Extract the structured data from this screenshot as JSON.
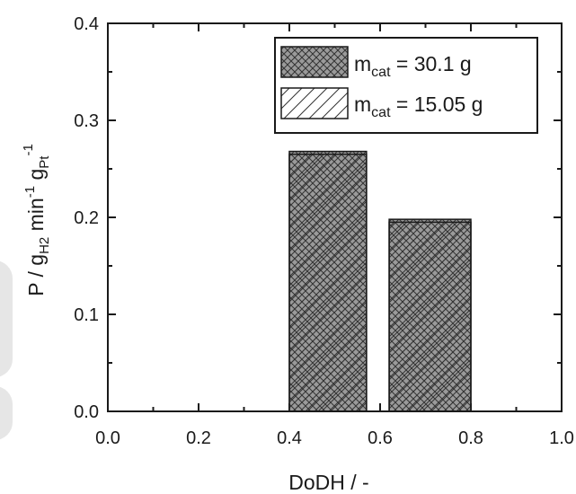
{
  "chart_data": {
    "type": "bar",
    "xlabel": "DoDH / -",
    "ylabel": "P / g_H2 min^-1 g_Pt^-1",
    "ylabel_parts": {
      "p1": "P / g",
      "sub1": "H2",
      "p2": " min",
      "sup1": "-1",
      "p3": " g",
      "sub2": "Pt",
      "sup2": "-1"
    },
    "xlim": [
      0.0,
      1.0
    ],
    "ylim": [
      0.0,
      0.4
    ],
    "x_ticks": [
      "0.0",
      "0.2",
      "0.4",
      "0.6",
      "0.8",
      "1.0"
    ],
    "y_ticks": [
      "0.0",
      "0.1",
      "0.2",
      "0.3",
      "0.4"
    ],
    "legend_position": "top-right",
    "series": [
      {
        "name": "m_cat = 30.1 g",
        "label_main": "m",
        "label_sub": "cat",
        "label_rest": " = 30.1 g",
        "pattern": "crosshatch",
        "bars": [
          {
            "x_start": 0.4,
            "x_end": 0.57,
            "value": 0.268
          },
          {
            "x_start": 0.62,
            "x_end": 0.8,
            "value": 0.198
          }
        ]
      },
      {
        "name": "m_cat = 15.05 g",
        "label_main": "m",
        "label_sub": "cat",
        "label_rest": " = 15.05 g",
        "pattern": "diagonal",
        "bars": [
          {
            "x_start": 0.4,
            "x_end": 0.57,
            "value": 0.265
          },
          {
            "x_start": 0.62,
            "x_end": 0.8,
            "value": 0.195
          }
        ]
      }
    ],
    "colors": {
      "axis": "#1a1a1a",
      "hatch": "#333333",
      "crosshatch_fill": "#9a9a9a"
    }
  }
}
